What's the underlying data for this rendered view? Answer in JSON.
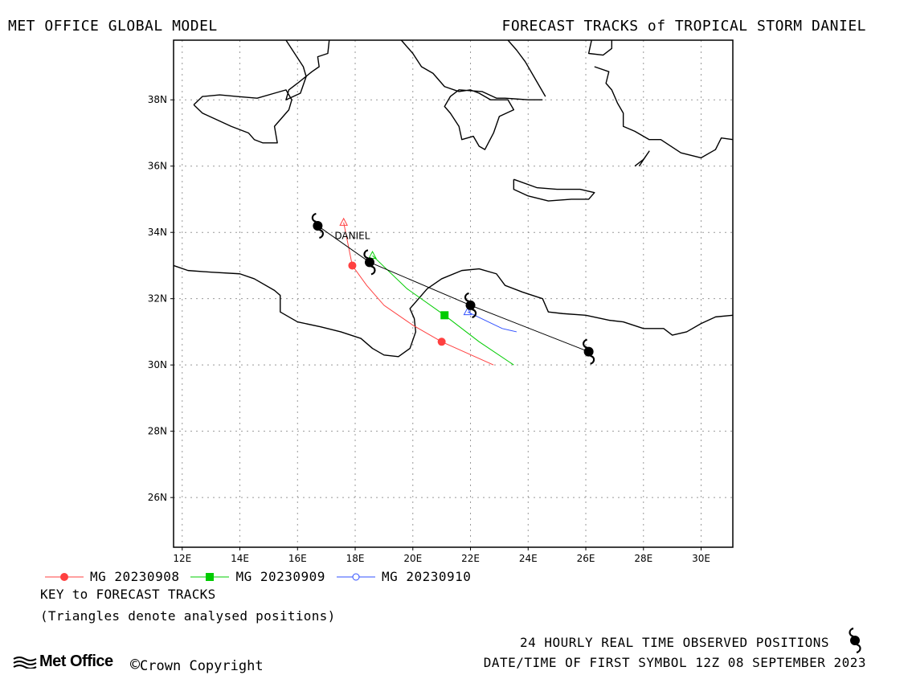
{
  "header": {
    "left": "MET OFFICE GLOBAL MODEL",
    "right": "FORECAST TRACKS of TROPICAL STORM DANIEL"
  },
  "map": {
    "lon_range": [
      11.7,
      31.1
    ],
    "lat_range": [
      24.5,
      39.8
    ],
    "x_ticks": [
      {
        "value": 12,
        "label": "12E"
      },
      {
        "value": 14,
        "label": "14E"
      },
      {
        "value": 16,
        "label": "16E"
      },
      {
        "value": 18,
        "label": "18E"
      },
      {
        "value": 20,
        "label": "20E"
      },
      {
        "value": 22,
        "label": "22E"
      },
      {
        "value": 24,
        "label": "24E"
      },
      {
        "value": 26,
        "label": "26E"
      },
      {
        "value": 28,
        "label": "28E"
      },
      {
        "value": 30,
        "label": "30E"
      }
    ],
    "y_ticks": [
      {
        "value": 26,
        "label": "26N"
      },
      {
        "value": 28,
        "label": "28N"
      },
      {
        "value": 30,
        "label": "30N"
      },
      {
        "value": 32,
        "label": "32N"
      },
      {
        "value": 34,
        "label": "34N"
      },
      {
        "value": 36,
        "label": "36N"
      },
      {
        "value": 38,
        "label": "38N"
      }
    ],
    "grid": true,
    "storm_label": {
      "text": "DANIEL",
      "lon": 17.9,
      "lat": 33.8
    }
  },
  "coastlines": [
    [
      [
        11.7,
        33.0
      ],
      [
        12.2,
        32.85
      ],
      [
        13.0,
        32.8
      ],
      [
        14.0,
        32.75
      ],
      [
        14.5,
        32.6
      ],
      [
        15.2,
        32.25
      ],
      [
        15.4,
        32.1
      ],
      [
        15.4,
        31.6
      ],
      [
        16.0,
        31.3
      ],
      [
        16.8,
        31.15
      ],
      [
        17.5,
        31.0
      ],
      [
        18.2,
        30.8
      ],
      [
        18.6,
        30.5
      ],
      [
        19.0,
        30.3
      ],
      [
        19.5,
        30.25
      ],
      [
        19.9,
        30.5
      ],
      [
        20.1,
        31.0
      ],
      [
        20.05,
        31.4
      ],
      [
        19.9,
        31.7
      ],
      [
        20.2,
        32.0
      ],
      [
        20.5,
        32.3
      ],
      [
        21.0,
        32.6
      ],
      [
        21.7,
        32.85
      ],
      [
        22.3,
        32.9
      ],
      [
        22.9,
        32.75
      ],
      [
        23.2,
        32.4
      ],
      [
        23.8,
        32.2
      ],
      [
        24.5,
        32.0
      ],
      [
        24.7,
        31.6
      ],
      [
        25.2,
        31.55
      ],
      [
        26.0,
        31.5
      ],
      [
        26.8,
        31.35
      ],
      [
        27.3,
        31.3
      ],
      [
        28.0,
        31.1
      ],
      [
        28.7,
        31.1
      ],
      [
        29.0,
        30.9
      ],
      [
        29.5,
        31.0
      ],
      [
        30.0,
        31.25
      ],
      [
        30.5,
        31.45
      ],
      [
        31.1,
        31.5
      ]
    ],
    [
      [
        12.4,
        37.85
      ],
      [
        12.7,
        38.1
      ],
      [
        13.3,
        38.15
      ],
      [
        13.9,
        38.1
      ],
      [
        14.6,
        38.05
      ],
      [
        15.2,
        38.2
      ],
      [
        15.6,
        38.3
      ],
      [
        15.8,
        38.0
      ],
      [
        15.7,
        37.7
      ],
      [
        15.4,
        37.4
      ],
      [
        15.2,
        37.2
      ],
      [
        15.3,
        36.7
      ],
      [
        14.8,
        36.7
      ],
      [
        14.5,
        36.8
      ],
      [
        14.3,
        37.0
      ],
      [
        13.7,
        37.2
      ],
      [
        13.2,
        37.4
      ],
      [
        12.7,
        37.6
      ],
      [
        12.4,
        37.85
      ]
    ],
    [
      [
        15.6,
        39.8
      ],
      [
        15.9,
        39.4
      ],
      [
        16.2,
        39.0
      ],
      [
        16.3,
        38.7
      ],
      [
        16.1,
        38.2
      ],
      [
        15.6,
        38.0
      ],
      [
        15.7,
        38.3
      ],
      [
        16.0,
        38.5
      ],
      [
        16.5,
        38.85
      ],
      [
        16.75,
        39.0
      ],
      [
        16.7,
        39.3
      ],
      [
        17.05,
        39.4
      ],
      [
        17.1,
        39.8
      ]
    ],
    [
      [
        19.6,
        39.8
      ],
      [
        20.0,
        39.4
      ],
      [
        20.3,
        39.0
      ],
      [
        20.7,
        38.8
      ],
      [
        21.1,
        38.4
      ],
      [
        21.6,
        38.25
      ],
      [
        22.0,
        38.3
      ],
      [
        22.3,
        38.2
      ],
      [
        22.7,
        38.0
      ],
      [
        23.3,
        38.0
      ],
      [
        23.5,
        37.7
      ],
      [
        23.0,
        37.5
      ],
      [
        22.8,
        37.0
      ],
      [
        22.5,
        36.5
      ],
      [
        22.3,
        36.6
      ],
      [
        22.1,
        36.9
      ],
      [
        21.7,
        36.8
      ],
      [
        21.6,
        37.2
      ],
      [
        21.3,
        37.6
      ],
      [
        21.1,
        37.8
      ],
      [
        21.3,
        38.1
      ],
      [
        21.6,
        38.3
      ],
      [
        22.4,
        38.25
      ],
      [
        22.9,
        38.05
      ],
      [
        23.2,
        38.05
      ],
      [
        24.0,
        38.0
      ],
      [
        24.5,
        38.0
      ]
    ],
    [
      [
        23.3,
        39.8
      ],
      [
        23.6,
        39.5
      ],
      [
        23.9,
        39.15
      ],
      [
        24.2,
        38.7
      ],
      [
        24.6,
        38.1
      ]
    ],
    [
      [
        26.2,
        39.8
      ],
      [
        26.1,
        39.4
      ],
      [
        26.6,
        39.35
      ],
      [
        26.9,
        39.55
      ],
      [
        26.9,
        39.8
      ]
    ],
    [
      [
        26.3,
        39.0
      ],
      [
        26.8,
        38.85
      ],
      [
        26.7,
        38.5
      ],
      [
        26.9,
        38.3
      ],
      [
        27.1,
        37.9
      ],
      [
        27.3,
        37.6
      ],
      [
        27.3,
        37.2
      ],
      [
        27.7,
        37.05
      ],
      [
        28.2,
        36.8
      ],
      [
        28.6,
        36.8
      ],
      [
        29.3,
        36.4
      ],
      [
        30.0,
        36.25
      ],
      [
        30.5,
        36.5
      ],
      [
        30.7,
        36.85
      ],
      [
        31.1,
        36.8
      ]
    ],
    [
      [
        23.5,
        35.6
      ],
      [
        24.3,
        35.35
      ],
      [
        25.0,
        35.3
      ],
      [
        25.8,
        35.3
      ],
      [
        26.3,
        35.2
      ],
      [
        26.1,
        35.0
      ],
      [
        25.5,
        35.0
      ],
      [
        24.7,
        34.95
      ],
      [
        24.0,
        35.1
      ],
      [
        23.5,
        35.3
      ],
      [
        23.5,
        35.6
      ]
    ],
    [
      [
        27.85,
        36.0
      ],
      [
        28.2,
        36.45
      ],
      [
        28.0,
        36.2
      ],
      [
        27.7,
        36.0
      ]
    ]
  ],
  "tracks": [
    {
      "name": "MG 20230908",
      "color": "#ff4040",
      "marker": "circle-filled",
      "points": [
        [
          17.6,
          34.3
        ],
        [
          17.9,
          33.0
        ],
        [
          18.4,
          32.4
        ],
        [
          19.0,
          31.8
        ],
        [
          20.0,
          31.2
        ],
        [
          21.0,
          30.7
        ],
        [
          22.8,
          30.0
        ]
      ],
      "markers": [
        [
          17.9,
          33.0
        ],
        [
          21.0,
          30.7
        ]
      ],
      "analysed": [
        17.6,
        34.3
      ]
    },
    {
      "name": "MG 20230909",
      "color": "#00cc00",
      "marker": "square-filled",
      "points": [
        [
          18.6,
          33.3
        ],
        [
          19.8,
          32.3
        ],
        [
          21.1,
          31.5
        ],
        [
          22.3,
          30.7
        ],
        [
          23.5,
          30.0
        ]
      ],
      "markers": [
        [
          21.1,
          31.5
        ]
      ],
      "analysed": [
        18.6,
        33.3
      ]
    },
    {
      "name": "MG 20230910",
      "color": "#3050ff",
      "marker": "circle-open",
      "points": [
        [
          21.9,
          31.6
        ],
        [
          23.1,
          31.1
        ],
        [
          23.6,
          31.0
        ]
      ],
      "markers": [],
      "analysed": [
        21.9,
        31.6
      ]
    }
  ],
  "observed": {
    "points": [
      [
        16.7,
        34.2
      ],
      [
        18.5,
        33.1
      ],
      [
        22.0,
        31.8
      ],
      [
        26.1,
        30.4
      ]
    ]
  },
  "legend": {
    "items": [
      {
        "label": "MG 20230908",
        "color": "#ff4040",
        "marker": "circle-filled"
      },
      {
        "label": "MG 20230909",
        "color": "#00cc00",
        "marker": "square-filled"
      },
      {
        "label": "MG 20230910",
        "color": "#3050ff",
        "marker": "circle-open"
      }
    ]
  },
  "key": {
    "title": "KEY to FORECAST TRACKS",
    "note": "(Triangles denote analysed positions)"
  },
  "footer": {
    "observed_label": "24 HOURLY REAL TIME OBSERVED POSITIONS",
    "date_label": "DATE/TIME OF FIRST SYMBOL 12Z 08 SEPTEMBER 2023",
    "logo": "Met Office",
    "copyright": "Crown Copyright"
  }
}
